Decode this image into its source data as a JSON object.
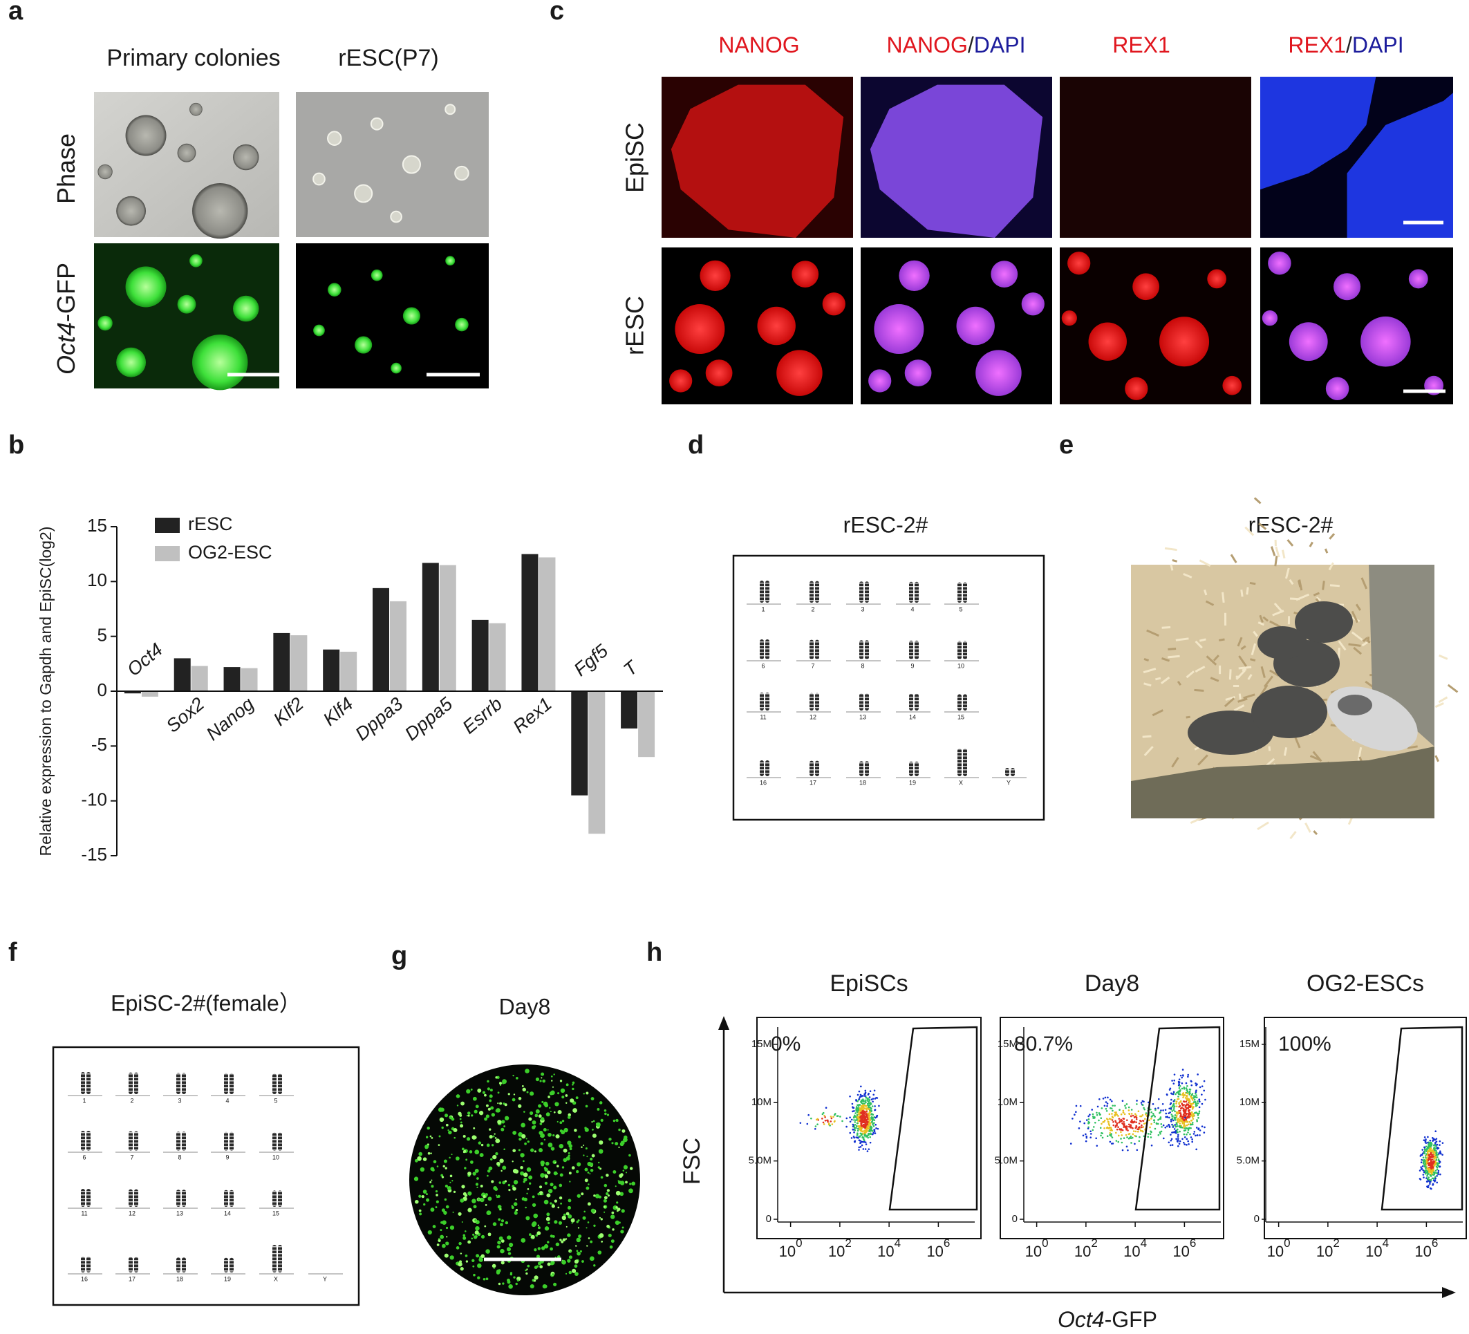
{
  "panel_labels": [
    "a",
    "b",
    "c",
    "d",
    "e",
    "f",
    "g",
    "h"
  ],
  "panel_a": {
    "columns": [
      "Primary colonies",
      "rESC(P7)"
    ],
    "rows": [
      {
        "parts": [
          {
            "text": "Phase",
            "italic": false
          }
        ]
      },
      {
        "parts": [
          {
            "text": "Oct4",
            "italic": true
          },
          {
            "text": "-GFP",
            "italic": false
          }
        ]
      }
    ]
  },
  "panel_c": {
    "columns": [
      {
        "parts": [
          {
            "text": "NANOG",
            "color": "#e0161e"
          }
        ]
      },
      {
        "parts": [
          {
            "text": "NANOG",
            "color": "#e0161e"
          },
          {
            "text": "/",
            "color": "#222222"
          },
          {
            "text": "DAPI",
            "color": "#1c1c9c"
          }
        ]
      },
      {
        "parts": [
          {
            "text": "REX1",
            "color": "#e0161e"
          }
        ]
      },
      {
        "parts": [
          {
            "text": "REX1",
            "color": "#e0161e"
          },
          {
            "text": "/",
            "color": "#222222"
          },
          {
            "text": "DAPI",
            "color": "#1c1c9c"
          }
        ]
      }
    ],
    "rows": [
      "EpiSC",
      "rESC"
    ]
  },
  "chart_data": {
    "type": "bar",
    "y_label": "Relative expression to Gapdh and EpiSC(log2)",
    "categories": [
      "Oct4",
      "Sox2",
      "Nanog",
      "Klf2",
      "Klf4",
      "Dppa3",
      "Dppa5",
      "Esrrb",
      "Rex1",
      "Fgf5",
      "T"
    ],
    "series": [
      {
        "name": "rESC",
        "color": "#222222",
        "values": [
          -0.2,
          3.0,
          2.2,
          5.3,
          3.8,
          9.4,
          11.7,
          6.5,
          12.5,
          -9.5,
          -3.4
        ]
      },
      {
        "name": "OG2-ESC",
        "color": "#c0c0c0",
        "values": [
          -0.5,
          2.3,
          2.1,
          5.1,
          3.6,
          8.2,
          11.5,
          6.2,
          12.2,
          -13.0,
          -6.0
        ]
      }
    ],
    "ylim": [
      -15,
      15
    ],
    "yticks": [
      -15,
      -10,
      -5,
      0,
      5,
      10,
      15
    ],
    "legend": "upper left"
  },
  "panel_d": {
    "title": "rESC-2#",
    "chromosomes": [
      "1",
      "2",
      "3",
      "4",
      "5",
      "6",
      "7",
      "8",
      "9",
      "10",
      "11",
      "12",
      "13",
      "14",
      "15",
      "16",
      "17",
      "18",
      "19",
      "X",
      "Y"
    ]
  },
  "panel_e": {
    "title": "rESC-2#"
  },
  "panel_f": {
    "title": "EpiSC-2#(female）",
    "chromosomes": [
      "1",
      "2",
      "3",
      "4",
      "5",
      "6",
      "7",
      "8",
      "9",
      "10",
      "11",
      "12",
      "13",
      "14",
      "15",
      "16",
      "17",
      "18",
      "19",
      "X",
      "Y"
    ]
  },
  "panel_g": {
    "title": "Day8"
  },
  "panel_h": {
    "y_label": "FSC",
    "x_label": {
      "parts": [
        {
          "text": "Oct4",
          "italic": true
        },
        {
          "text": "-GFP",
          "italic": false
        }
      ]
    },
    "ylim": [
      0,
      16000000
    ],
    "xlim": [
      0.3,
      30000000
    ],
    "x_log": true,
    "yticks": [
      0,
      {
        "value": 5000000,
        "label": "5.0M"
      },
      {
        "value": 10000000,
        "label": "10M"
      },
      {
        "value": 15000000,
        "label": "15M"
      }
    ],
    "xticks": [
      {
        "value": 1,
        "label": "10",
        "exponent": "0"
      },
      {
        "value": 100,
        "label": "10",
        "exponent": "2"
      },
      {
        "value": 10000,
        "label": "10",
        "exponent": "4"
      },
      {
        "value": 1000000,
        "label": "10",
        "exponent": "6"
      }
    ],
    "plots": [
      {
        "title": "EpiSCs",
        "gate_label": "0%"
      },
      {
        "title": "Day8",
        "gate_label": "80.7%"
      },
      {
        "title": "OG2-ESCs",
        "gate_label": "100%"
      }
    ]
  }
}
